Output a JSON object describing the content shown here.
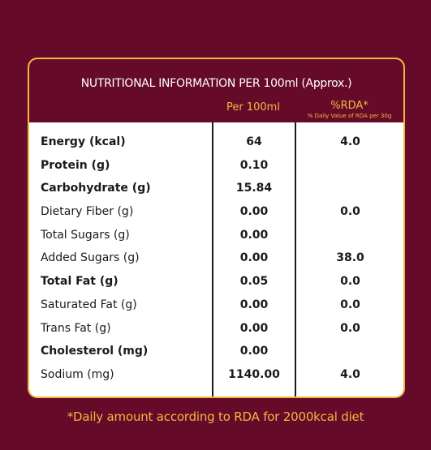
{
  "table": {
    "title": "NUTRITIONAL INFORMATION PER 100ml (Approx.)",
    "col_per": "Per 100ml",
    "col_rda": "%RDA*",
    "col_rda_note": "% Daily Value of RDA per 30g",
    "rows": [
      {
        "name": "Energy (kcal)",
        "per": "64",
        "rda": "4.0",
        "bold": true
      },
      {
        "name": "Protein (g)",
        "per": "0.10",
        "rda": "",
        "bold": true
      },
      {
        "name": "Carbohydrate (g)",
        "per": "15.84",
        "rda": "",
        "bold": true
      },
      {
        "name": "Dietary Fiber (g)",
        "per": "0.00",
        "rda": "0.0",
        "bold": false
      },
      {
        "name": "Total Sugars (g)",
        "per": "0.00",
        "rda": "",
        "bold": false
      },
      {
        "name": "Added Sugars (g)",
        "per": "0.00",
        "rda": "38.0",
        "bold": false
      },
      {
        "name": "Total Fat (g)",
        "per": "0.05",
        "rda": "0.0",
        "bold": true
      },
      {
        "name": "Saturated Fat (g)",
        "per": "0.00",
        "rda": "0.0",
        "bold": false
      },
      {
        "name": "Trans Fat (g)",
        "per": "0.00",
        "rda": "0.0",
        "bold": false
      },
      {
        "name": "Cholesterol (mg)",
        "per": "0.00",
        "rda": "",
        "bold": true
      },
      {
        "name": "Sodium (mg)",
        "per": "1140.00",
        "rda": "4.0",
        "bold": false
      }
    ]
  },
  "footnote": "*Daily amount according to RDA for 2000kcal diet",
  "colors": {
    "background": "#660a2a",
    "accent": "#f2b83c",
    "table_bg": "#ffffff",
    "text": "#1a1a1a"
  }
}
